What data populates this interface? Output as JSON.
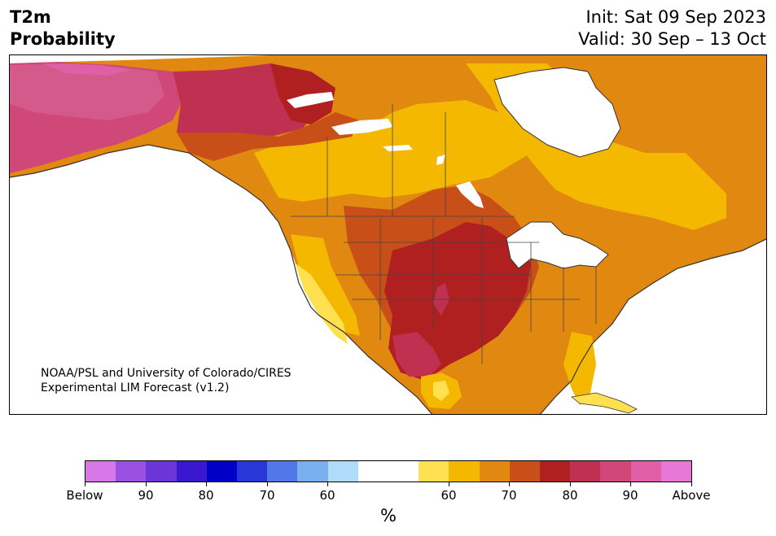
{
  "header": {
    "title_line1": "T2m",
    "title_line2": "Probability",
    "init": "Init: Sat 09 Sep 2023",
    "valid": "Valid: 30 Sep – 13 Oct"
  },
  "map": {
    "credit_line1": "NOAA/PSL and University of Colorado/CIRES",
    "credit_line2": "Experimental LIM Forecast (v1.2)"
  },
  "colorbar": {
    "colors": [
      "#d878e8",
      "#9a50e0",
      "#6a36d8",
      "#3a18d0",
      "#0000c8",
      "#2838d8",
      "#5078e8",
      "#78b0f0",
      "#b0dcfc",
      "#ffffff",
      "#ffffff",
      "#ffe050",
      "#f5b800",
      "#e08810",
      "#c85018",
      "#b02020",
      "#c03050",
      "#d04878",
      "#e060a8",
      "#e878d8"
    ],
    "tick_labels": [
      "Below",
      "90",
      "80",
      "70",
      "60",
      "60",
      "70",
      "80",
      "90",
      "Above"
    ],
    "unit": "%"
  }
}
